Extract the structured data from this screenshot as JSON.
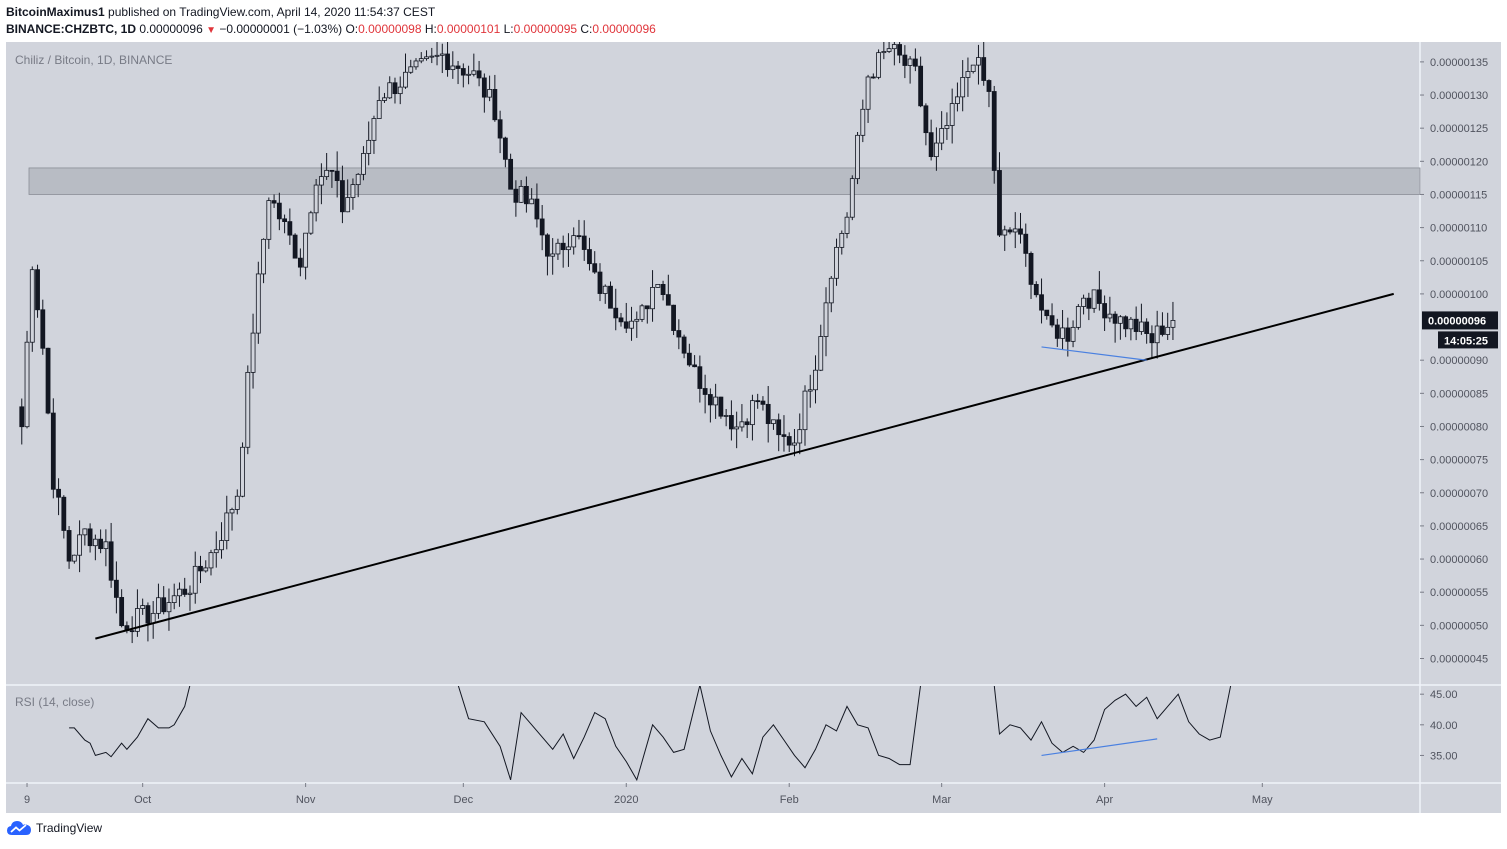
{
  "header": {
    "author": "BitcoinMaximus1",
    "published_text": "published on TradingView.com, April 14, 2020 11:54:37 CEST",
    "symbol": "BINANCE:CHZBTC, 1D",
    "last_price": "0.00000096",
    "change": "−0.00000001 (−1.03%)",
    "o_label": "O:",
    "o_value": "0.00000098",
    "h_label": "H:",
    "h_value": "0.00000101",
    "l_label": "L:",
    "l_value": "0.00000095",
    "c_label": "C:",
    "c_value": "0.00000096"
  },
  "footer": {
    "brand": "TradingView"
  },
  "colors": {
    "pane_bg": "#d1d4dc",
    "zone": "#b2b5be",
    "candle": "#131722",
    "trendline": "#000000",
    "divergence": "#4a80e0",
    "axis_text": "#50535e",
    "label_bg": "#131722"
  },
  "chart_data": {
    "type": "candlestick",
    "title": "Chiliz / Bitcoin, 1D, BINANCE",
    "price_axis": {
      "ylim": [
        4.1e-07,
        1.38e-06
      ],
      "ticks": [
        "0.00000135",
        "0.00000130",
        "0.00000125",
        "0.00000120",
        "0.00000115",
        "0.00000110",
        "0.00000105",
        "0.00000100",
        "0.00000096",
        "0.00000090",
        "0.00000085",
        "0.00000080",
        "0.00000075",
        "0.00000070",
        "0.00000065",
        "0.00000060",
        "0.00000055",
        "0.00000050",
        "0.00000045"
      ],
      "current_price_label": "0.00000096",
      "countdown_label": "14:05:25"
    },
    "x_axis": {
      "start_date": "2019-09-05",
      "end_date": "2020-05-31",
      "labels": [
        {
          "text": "9",
          "date": "2019-09-09"
        },
        {
          "text": "Oct",
          "date": "2019-10-01"
        },
        {
          "text": "Nov",
          "date": "2019-11-01"
        },
        {
          "text": "Dec",
          "date": "2019-12-01"
        },
        {
          "text": "2020",
          "date": "2020-01-01"
        },
        {
          "text": "Feb",
          "date": "2020-02-01"
        },
        {
          "text": "Mar",
          "date": "2020-03-01"
        },
        {
          "text": "Apr",
          "date": "2020-04-01"
        },
        {
          "text": "May",
          "date": "2020-05-01"
        }
      ]
    },
    "resistance_zone": [
      1.15e-06,
      1.19e-06
    ],
    "trendline": {
      "points": [
        [
          "2019-09-22",
          4.8e-07
        ],
        [
          "2020-05-26",
          1e-06
        ]
      ]
    },
    "price_divergence_line": {
      "points": [
        [
          "2020-03-20",
          9.2e-07
        ],
        [
          "2020-04-09",
          9e-07
        ]
      ]
    },
    "candles_anchor_closes": [
      [
        "2019-09-08",
        8e-07
      ],
      [
        "2019-09-10",
        1.05e-06
      ],
      [
        "2019-09-12",
        9.2e-07
      ],
      [
        "2019-09-14",
        7.2e-07
      ],
      [
        "2019-09-17",
        6e-07
      ],
      [
        "2019-09-20",
        6.4e-07
      ],
      [
        "2019-09-24",
        6.2e-07
      ],
      [
        "2019-09-27",
        5e-07
      ],
      [
        "2019-10-03",
        5.2e-07
      ],
      [
        "2019-10-10",
        5.6e-07
      ],
      [
        "2019-10-15",
        6.2e-07
      ],
      [
        "2019-10-19",
        7e-07
      ],
      [
        "2019-10-22",
        9.5e-07
      ],
      [
        "2019-10-25",
        1.15e-06
      ],
      [
        "2019-10-28",
        1.1e-06
      ],
      [
        "2019-10-31",
        1.05e-06
      ],
      [
        "2019-11-03",
        1.18e-06
      ],
      [
        "2019-11-06",
        1.18e-06
      ],
      [
        "2019-11-08",
        1.13e-06
      ],
      [
        "2019-11-12",
        1.2e-06
      ],
      [
        "2019-11-15",
        1.3e-06
      ],
      [
        "2019-11-27",
        1.36e-06
      ],
      [
        "2019-12-03",
        1.33e-06
      ],
      [
        "2019-12-07",
        1.28e-06
      ],
      [
        "2019-12-10",
        1.16e-06
      ],
      [
        "2019-12-14",
        1.13e-06
      ],
      [
        "2019-12-18",
        1.05e-06
      ],
      [
        "2019-12-22",
        1.1e-06
      ],
      [
        "2019-12-26",
        1.02e-06
      ],
      [
        "2019-12-30",
        9.8e-07
      ],
      [
        "2020-01-03",
        9.5e-07
      ],
      [
        "2020-01-07",
        1.03e-06
      ],
      [
        "2020-01-10",
        9.6e-07
      ],
      [
        "2020-01-14",
        8.8e-07
      ],
      [
        "2020-01-18",
        8.4e-07
      ],
      [
        "2020-01-22",
        8e-07
      ],
      [
        "2020-01-26",
        8.4e-07
      ],
      [
        "2020-01-30",
        7.8e-07
      ],
      [
        "2020-02-02",
        7.8e-07
      ],
      [
        "2020-02-06",
        9e-07
      ],
      [
        "2020-02-09",
        1.04e-06
      ],
      [
        "2020-02-12",
        1.12e-06
      ],
      [
        "2020-02-16",
        1.33e-06
      ],
      [
        "2020-02-20",
        1.37e-06
      ],
      [
        "2020-02-25",
        1.33e-06
      ],
      [
        "2020-02-28",
        1.2e-06
      ],
      [
        "2020-03-03",
        1.27e-06
      ],
      [
        "2020-03-07",
        1.36e-06
      ],
      [
        "2020-03-10",
        1.3e-06
      ],
      [
        "2020-03-12",
        1.08e-06
      ],
      [
        "2020-03-15",
        1.1e-06
      ],
      [
        "2020-03-18",
        1.03e-06
      ],
      [
        "2020-03-21",
        9.5e-07
      ],
      [
        "2020-03-25",
        9.4e-07
      ],
      [
        "2020-03-28",
        1e-06
      ],
      [
        "2020-04-01",
        9.8e-07
      ],
      [
        "2020-04-04",
        9.6e-07
      ],
      [
        "2020-04-07",
        9.5e-07
      ],
      [
        "2020-04-10",
        9.3e-07
      ],
      [
        "2020-04-12",
        9.5e-07
      ],
      [
        "2020-04-14",
        9.6e-07
      ]
    ],
    "rsi": {
      "label": "RSI (14, close)",
      "ylim": [
        30.5,
        46.5
      ],
      "ticks": [
        "45.00",
        "40.00",
        "35.00"
      ],
      "points": [
        [
          "2019-09-17",
          39.5
        ],
        [
          "2019-09-18",
          39.5
        ],
        [
          "2019-09-20",
          37.5
        ],
        [
          "2019-09-21",
          37.0
        ],
        [
          "2019-09-22",
          35.0
        ],
        [
          "2019-09-24",
          35.5
        ],
        [
          "2019-09-25",
          34.8
        ],
        [
          "2019-09-27",
          37.0
        ],
        [
          "2019-09-28",
          36.0
        ],
        [
          "2019-09-30",
          38.0
        ],
        [
          "2019-10-02",
          41.0
        ],
        [
          "2019-10-04",
          39.5
        ],
        [
          "2019-10-06",
          39.5
        ],
        [
          "2019-10-07",
          40.0
        ],
        [
          "2019-10-09",
          43.0
        ],
        [
          "2019-10-10",
          46.5
        ],
        null,
        [
          "2019-11-30",
          46.5
        ],
        [
          "2019-12-02",
          41.0
        ],
        [
          "2019-12-05",
          40.5
        ],
        [
          "2019-12-08",
          36.5
        ],
        [
          "2019-12-10",
          31.0
        ],
        [
          "2019-12-12",
          42.0
        ],
        [
          "2019-12-14",
          40.0
        ],
        [
          "2019-12-16",
          38.0
        ],
        [
          "2019-12-18",
          36.0
        ],
        [
          "2019-12-20",
          38.5
        ],
        [
          "2019-12-22",
          34.5
        ],
        [
          "2019-12-24",
          38.0
        ],
        [
          "2019-12-26",
          42.0
        ],
        [
          "2019-12-28",
          41.0
        ],
        [
          "2019-12-30",
          36.5
        ],
        [
          "2020-01-01",
          34.0
        ],
        [
          "2020-01-03",
          31.0
        ],
        [
          "2020-01-06",
          40.0
        ],
        [
          "2020-01-08",
          38.0
        ],
        [
          "2020-01-10",
          35.5
        ],
        [
          "2020-01-12",
          36.0
        ],
        [
          "2020-01-15",
          46.5
        ],
        [
          "2020-01-17",
          39.0
        ],
        [
          "2020-01-19",
          35.0
        ],
        [
          "2020-01-21",
          31.5
        ],
        [
          "2020-01-23",
          34.5
        ],
        [
          "2020-01-25",
          32.0
        ],
        [
          "2020-01-27",
          38.0
        ],
        [
          "2020-01-29",
          40.0
        ],
        [
          "2020-01-31",
          37.5
        ],
        [
          "2020-02-02",
          35.0
        ],
        [
          "2020-02-04",
          33.0
        ],
        [
          "2020-02-06",
          36.0
        ],
        [
          "2020-02-08",
          40.0
        ],
        [
          "2020-02-10",
          39.0
        ],
        [
          "2020-02-12",
          43.0
        ],
        [
          "2020-02-14",
          40.0
        ],
        [
          "2020-02-16",
          39.5
        ],
        [
          "2020-02-18",
          35.0
        ],
        [
          "2020-02-20",
          34.5
        ],
        [
          "2020-02-22",
          33.5
        ],
        [
          "2020-02-24",
          33.5
        ],
        [
          "2020-02-26",
          46.5
        ],
        null,
        [
          "2020-03-11",
          46.5
        ],
        [
          "2020-03-12",
          38.5
        ],
        [
          "2020-03-14",
          40.0
        ],
        [
          "2020-03-16",
          39.5
        ],
        [
          "2020-03-18",
          37.5
        ],
        [
          "2020-03-20",
          40.5
        ],
        [
          "2020-03-22",
          37.0
        ],
        [
          "2020-03-24",
          35.5
        ],
        [
          "2020-03-26",
          36.5
        ],
        [
          "2020-03-28",
          35.5
        ],
        [
          "2020-03-30",
          37.5
        ],
        [
          "2020-04-01",
          42.5
        ],
        [
          "2020-04-03",
          44.0
        ],
        [
          "2020-04-05",
          45.0
        ],
        [
          "2020-04-07",
          43.0
        ],
        [
          "2020-04-09",
          44.5
        ],
        [
          "2020-04-11",
          41.0
        ],
        [
          "2020-04-13",
          43.0
        ],
        [
          "2020-04-15",
          45.0
        ],
        [
          "2020-04-17",
          40.5
        ],
        [
          "2020-04-19",
          38.5
        ],
        [
          "2020-04-21",
          37.5
        ],
        [
          "2020-04-23",
          38.0
        ],
        [
          "2020-04-25",
          46.5
        ]
      ],
      "divergence_line": {
        "points": [
          [
            "2020-03-20",
            35.0
          ],
          [
            "2020-04-11",
            37.7
          ]
        ]
      }
    }
  }
}
